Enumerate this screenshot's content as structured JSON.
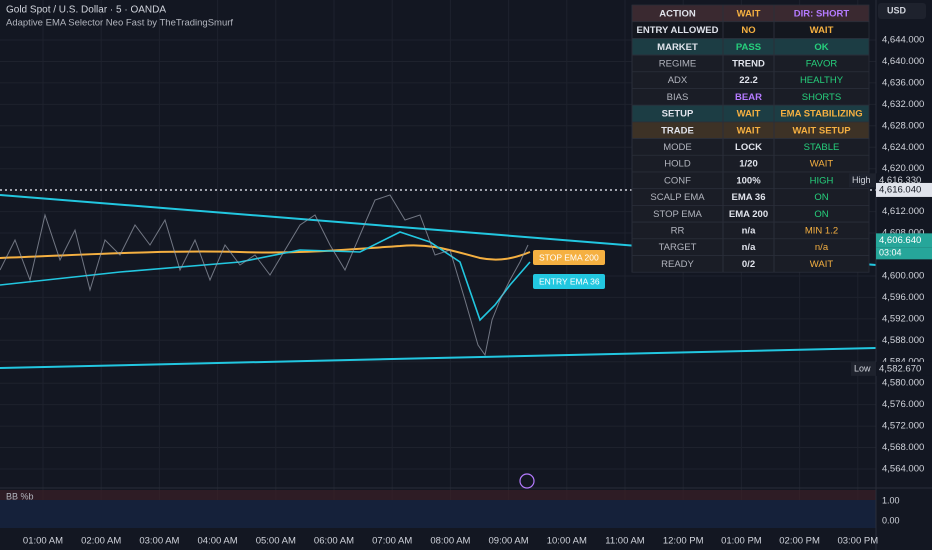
{
  "header": {
    "symbol": "Gold Spot / U.S. Dollar · 5 · OANDA",
    "indicator": "Adaptive EMA Selector Neo Fast by TheTradingSmurf",
    "currency": "USD"
  },
  "table": {
    "rows": [
      {
        "cells": [
          "ACTION",
          "WAIT",
          "DIR: SHORT"
        ],
        "colors": [
          "#e0e3eb",
          "#f5b041",
          "#b57bff"
        ],
        "bg": "#3a2930"
      },
      {
        "cells": [
          "ENTRY ALLOWED",
          "NO",
          "WAIT"
        ],
        "colors": [
          "#e0e3eb",
          "#f5b041",
          "#f5b041"
        ],
        "bg": "#14171f"
      },
      {
        "cells": [
          "MARKET",
          "PASS",
          "OK"
        ],
        "colors": [
          "#e0e3eb",
          "#26d07c",
          "#26d07c"
        ],
        "bg": "#1c3d44"
      },
      {
        "cells": [
          "REGIME",
          "TREND",
          "FAVOR"
        ],
        "colors": [
          "#b2b5be",
          "#e0e3eb",
          "#26d07c"
        ],
        "bg": "#1a1d26"
      },
      {
        "cells": [
          "ADX",
          "22.2",
          "HEALTHY"
        ],
        "colors": [
          "#b2b5be",
          "#e0e3eb",
          "#26d07c"
        ],
        "bg": "#1a1d26"
      },
      {
        "cells": [
          "BIAS",
          "BEAR",
          "SHORTS"
        ],
        "colors": [
          "#b2b5be",
          "#b57bff",
          "#26d07c"
        ],
        "bg": "#1a1d26"
      },
      {
        "cells": [
          "SETUP",
          "WAIT",
          "EMA STABILIZING"
        ],
        "colors": [
          "#e0e3eb",
          "#f5b041",
          "#f5b041"
        ],
        "bg": "#1c3d44"
      },
      {
        "cells": [
          "TRADE",
          "WAIT",
          "WAIT SETUP"
        ],
        "colors": [
          "#e0e3eb",
          "#f5b041",
          "#f5b041"
        ],
        "bg": "#3d3226"
      },
      {
        "cells": [
          "MODE",
          "LOCK",
          "STABLE"
        ],
        "colors": [
          "#b2b5be",
          "#e0e3eb",
          "#26d07c"
        ],
        "bg": "#1a1d26"
      },
      {
        "cells": [
          "HOLD",
          "1/20",
          "WAIT"
        ],
        "colors": [
          "#b2b5be",
          "#e0e3eb",
          "#f5b041"
        ],
        "bg": "#1a1d26"
      },
      {
        "cells": [
          "CONF",
          "100%",
          "HIGH"
        ],
        "colors": [
          "#b2b5be",
          "#e0e3eb",
          "#26d07c"
        ],
        "bg": "#1a1d26"
      },
      {
        "cells": [
          "SCALP EMA",
          "EMA 36",
          "ON"
        ],
        "colors": [
          "#b2b5be",
          "#e0e3eb",
          "#26d07c"
        ],
        "bg": "#1a1d26"
      },
      {
        "cells": [
          "STOP EMA",
          "EMA 200",
          "ON"
        ],
        "colors": [
          "#b2b5be",
          "#e0e3eb",
          "#26d07c"
        ],
        "bg": "#1a1d26"
      },
      {
        "cells": [
          "RR",
          "n/a",
          "MIN 1.2"
        ],
        "colors": [
          "#b2b5be",
          "#e0e3eb",
          "#f5b041"
        ],
        "bg": "#1a1d26"
      },
      {
        "cells": [
          "TARGET",
          "n/a",
          "n/a"
        ],
        "colors": [
          "#b2b5be",
          "#e0e3eb",
          "#f5b041"
        ],
        "bg": "#1a1d26"
      },
      {
        "cells": [
          "READY",
          "0/2",
          "WAIT"
        ],
        "colors": [
          "#b2b5be",
          "#e0e3eb",
          "#f5b041"
        ],
        "bg": "#1a1d26"
      }
    ]
  },
  "price_axis": {
    "ticks": [
      {
        "value": 4644,
        "label": "4,644.000"
      },
      {
        "value": 4640,
        "label": "4,640.000"
      },
      {
        "value": 4636,
        "label": "4,636.000"
      },
      {
        "value": 4632,
        "label": "4,632.000"
      },
      {
        "value": 4628,
        "label": "4,628.000"
      },
      {
        "value": 4624,
        "label": "4,624.000"
      },
      {
        "value": 4620,
        "label": "4,620.000"
      },
      {
        "value": 4612,
        "label": "4,612.000"
      },
      {
        "value": 4608,
        "label": "4,608.000"
      },
      {
        "value": 4600,
        "label": "4,600.000"
      },
      {
        "value": 4596,
        "label": "4,596.000"
      },
      {
        "value": 4592,
        "label": "4,592.000"
      },
      {
        "value": 4588,
        "label": "4,588.000"
      },
      {
        "value": 4584,
        "label": "4,584.000"
      },
      {
        "value": 4580,
        "label": "4,580.000"
      },
      {
        "value": 4576,
        "label": "4,576.000"
      },
      {
        "value": 4572,
        "label": "4,572.000"
      },
      {
        "value": 4568,
        "label": "4,568.000"
      },
      {
        "value": 4564,
        "label": "4,564.000"
      }
    ],
    "high": {
      "name": "High",
      "value": 4616.33,
      "label": "4,616.330"
    },
    "prev": {
      "value": 4616.04,
      "label": "4,616.040"
    },
    "last": {
      "value": 4606.64,
      "label": "4,606.640",
      "countdown": "03:04"
    },
    "low": {
      "name": "Low",
      "value": 4582.67,
      "label": "4,582.670"
    }
  },
  "time_axis": [
    "01:00 AM",
    "02:00 AM",
    "03:00 AM",
    "04:00 AM",
    "05:00 AM",
    "06:00 AM",
    "07:00 AM",
    "08:00 AM",
    "09:00 AM",
    "10:00 AM",
    "11:00 AM",
    "12:00 PM",
    "01:00 PM",
    "02:00 PM",
    "03:00 PM"
  ],
  "tags": {
    "stop": "STOP EMA 200",
    "entry": "ENTRY EMA 36"
  },
  "oscillator": {
    "title": "BB %b",
    "ticks": [
      "1.00",
      "0.00"
    ]
  }
}
